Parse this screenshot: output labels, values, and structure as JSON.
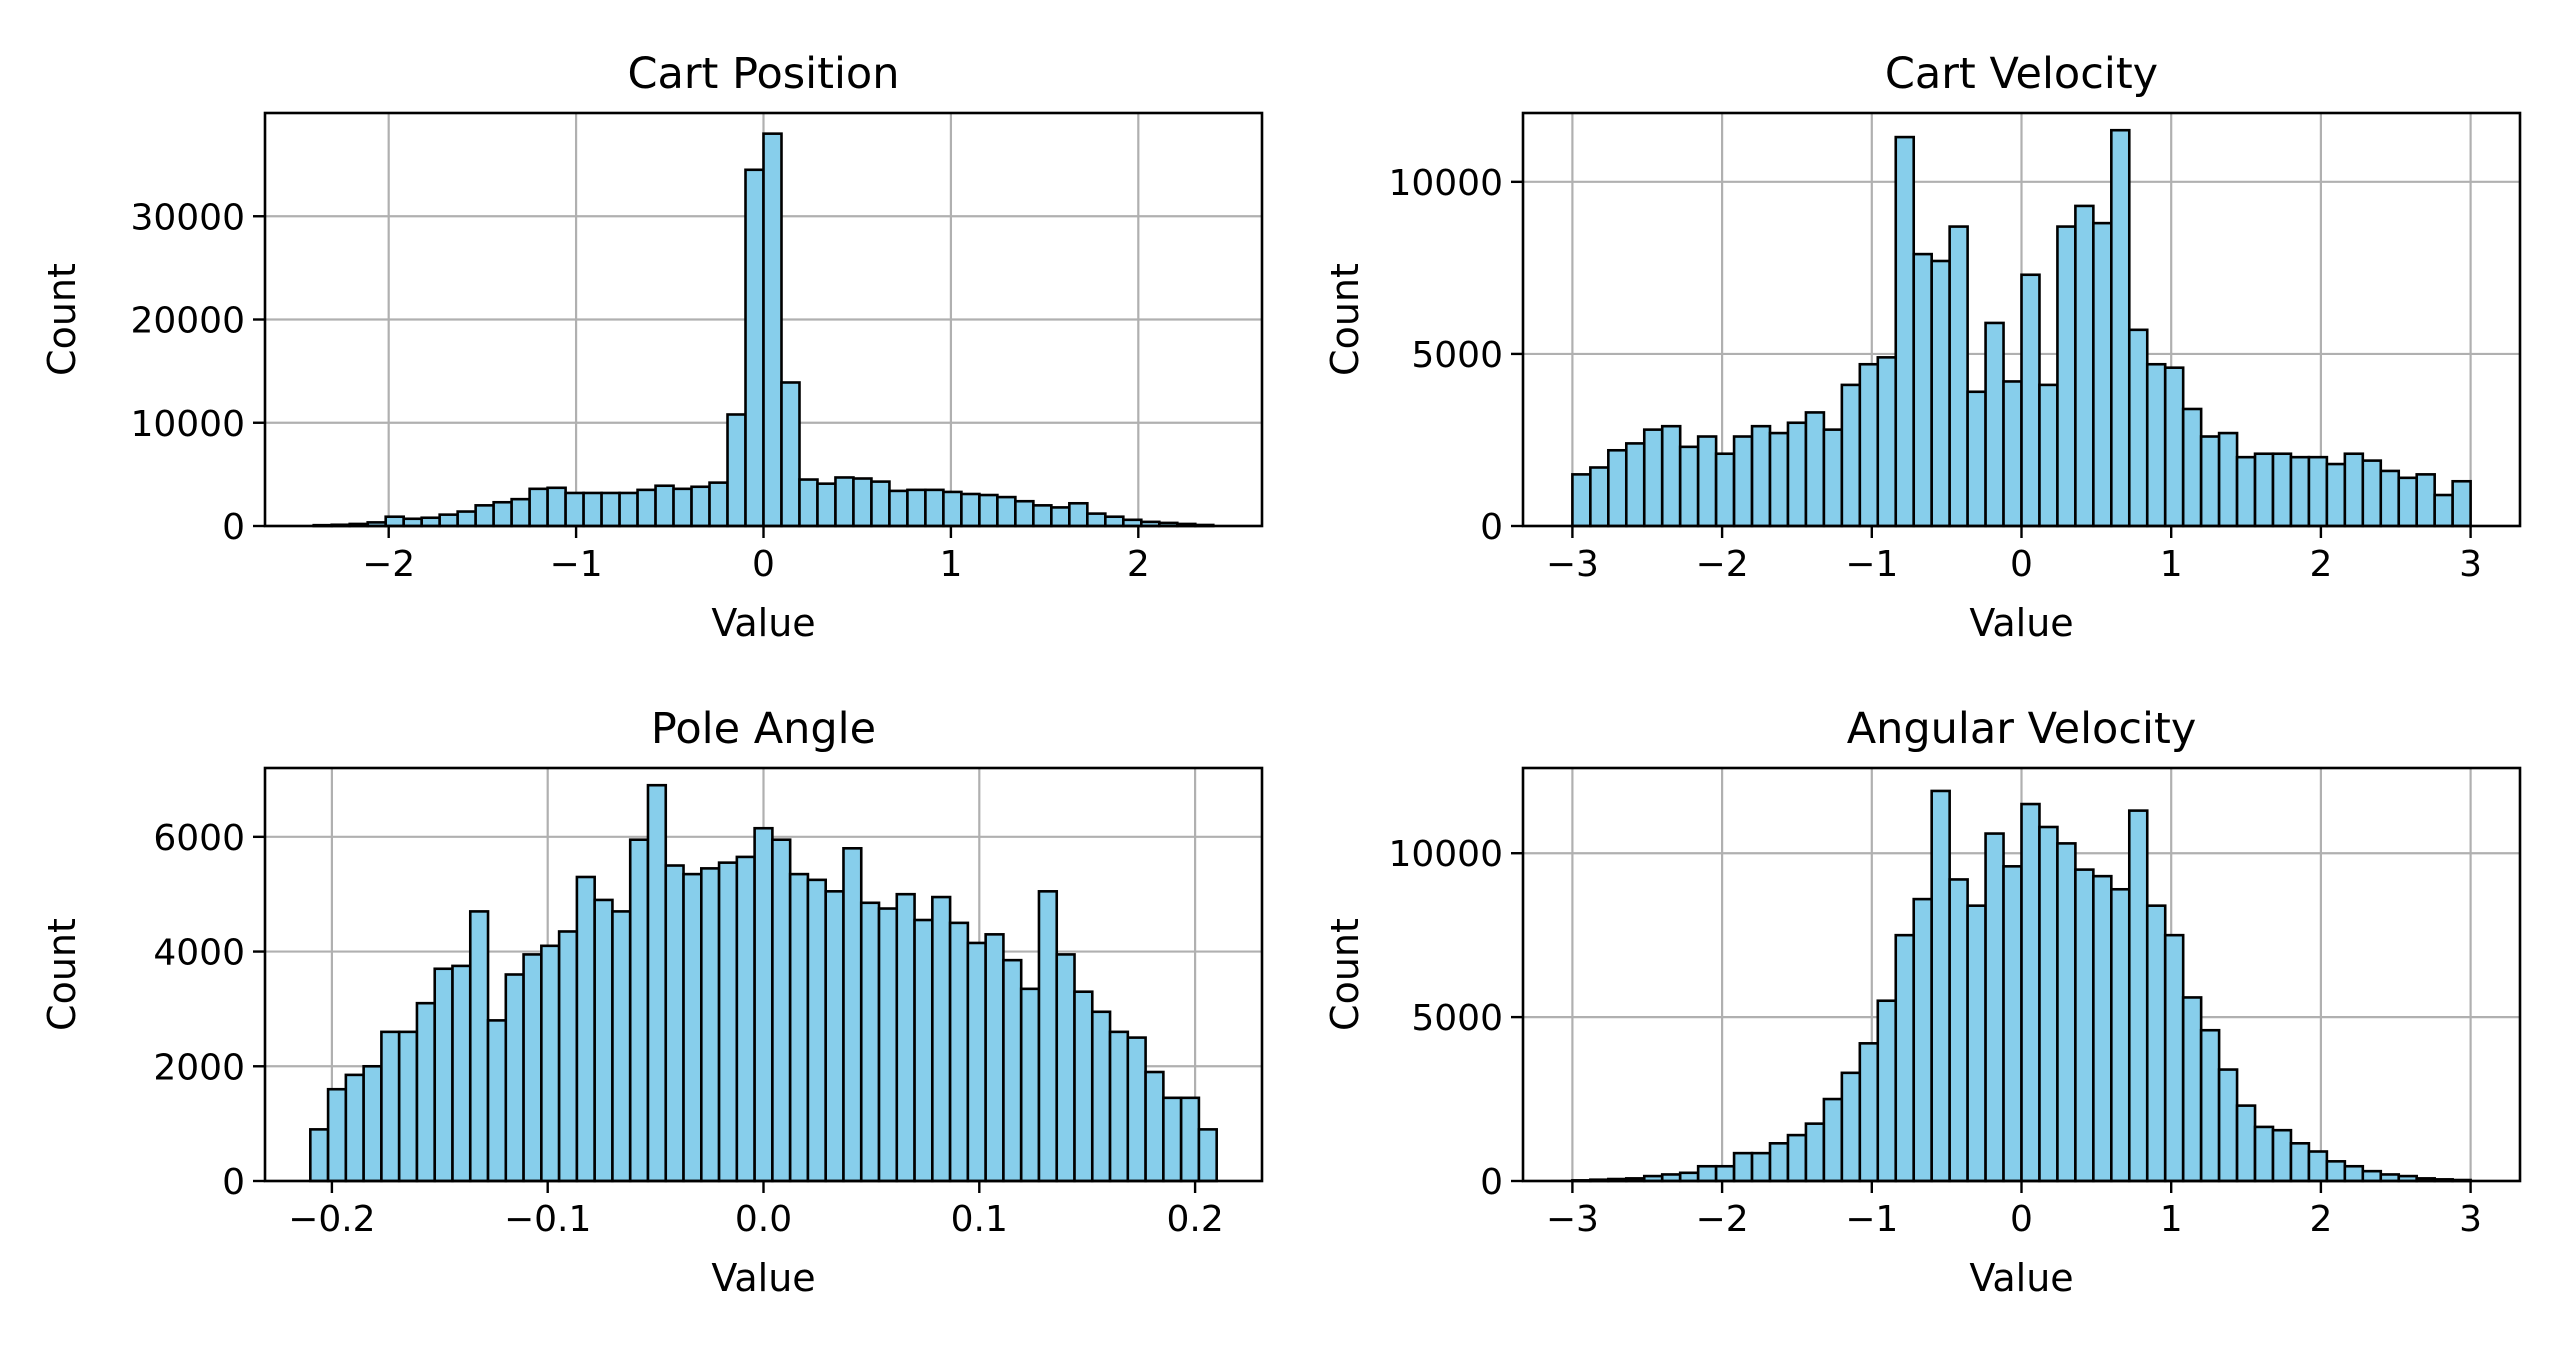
{
  "style": {
    "bar_fill": "#87ceeb",
    "bar_edge": "#000000",
    "grid_color": "#b0b0b0"
  },
  "chart_data": [
    {
      "type": "bar",
      "id": "cart-position",
      "title": "Cart Position",
      "xlabel": "Value",
      "ylabel": "Count",
      "grid": true,
      "xlim": [
        -2.66,
        2.66
      ],
      "ylim": [
        0,
        40000
      ],
      "xticks": [
        -2,
        -1,
        0,
        1,
        2
      ],
      "xtick_labels": [
        "−2",
        "−1",
        "0",
        "1",
        "2"
      ],
      "yticks": [
        0,
        10000,
        20000,
        30000
      ],
      "ytick_labels": [
        "0",
        "10000",
        "20000",
        "30000"
      ],
      "bin_range": [
        -2.4,
        2.4
      ],
      "values": [
        80,
        120,
        200,
        350,
        900,
        700,
        800,
        1100,
        1400,
        2000,
        2300,
        2600,
        3600,
        3700,
        3200,
        3200,
        3200,
        3200,
        3500,
        3900,
        3600,
        3800,
        4200,
        10800,
        34500,
        38000,
        13900,
        4500,
        4100,
        4700,
        4600,
        4300,
        3400,
        3500,
        3500,
        3300,
        3100,
        3000,
        2800,
        2400,
        2000,
        1800,
        2200,
        1200,
        900,
        600,
        400,
        300,
        200,
        100
      ]
    },
    {
      "type": "bar",
      "id": "cart-velocity",
      "title": "Cart Velocity",
      "xlabel": "Value",
      "ylabel": "Count",
      "grid": true,
      "xlim": [
        -3.33,
        3.33
      ],
      "ylim": [
        0,
        12000
      ],
      "xticks": [
        -3,
        -2,
        -1,
        0,
        1,
        2,
        3
      ],
      "xtick_labels": [
        "−3",
        "−2",
        "−1",
        "0",
        "1",
        "2",
        "3"
      ],
      "yticks": [
        0,
        5000,
        10000
      ],
      "ytick_labels": [
        "0",
        "5000",
        "10000"
      ],
      "bin_range": [
        -3,
        3
      ],
      "values": [
        1500,
        1700,
        2200,
        2400,
        2800,
        2900,
        2300,
        2600,
        2100,
        2600,
        2900,
        2700,
        3000,
        3300,
        2800,
        4100,
        4700,
        4900,
        11300,
        7900,
        7700,
        8700,
        3900,
        5900,
        4200,
        7300,
        4100,
        8700,
        9300,
        8800,
        11500,
        5700,
        4700,
        4600,
        3400,
        2600,
        2700,
        2000,
        2100,
        2100,
        2000,
        2000,
        1800,
        2100,
        1900,
        1600,
        1400,
        1500,
        900,
        1300
      ]
    },
    {
      "type": "bar",
      "id": "pole-angle",
      "title": "Pole Angle",
      "xlabel": "Value",
      "ylabel": "Count",
      "grid": true,
      "xlim": [
        -0.231,
        0.231
      ],
      "ylim": [
        0,
        7200
      ],
      "xticks": [
        -0.2,
        -0.1,
        0.0,
        0.1,
        0.2
      ],
      "xtick_labels": [
        "−0.2",
        "−0.1",
        "0.0",
        "0.1",
        "0.2"
      ],
      "yticks": [
        0,
        2000,
        4000,
        6000
      ],
      "ytick_labels": [
        "0",
        "2000",
        "4000",
        "6000"
      ],
      "bin_range": [
        -0.21,
        0.21
      ],
      "values": [
        900,
        1600,
        1850,
        2000,
        2600,
        2600,
        3100,
        3700,
        3750,
        4700,
        2800,
        3600,
        3950,
        4100,
        4350,
        5300,
        4900,
        4700,
        5950,
        6900,
        5500,
        5350,
        5450,
        5550,
        5650,
        6150,
        5950,
        5350,
        5250,
        5050,
        5800,
        4850,
        4750,
        5000,
        4550,
        4950,
        4500,
        4150,
        4300,
        3850,
        3350,
        5050,
        3950,
        3300,
        2950,
        2600,
        2500,
        1900,
        1450,
        1450,
        900
      ]
    },
    {
      "type": "bar",
      "id": "angular-velocity",
      "title": "Angular Velocity",
      "xlabel": "Value",
      "ylabel": "Count",
      "grid": true,
      "xlim": [
        -3.33,
        3.33
      ],
      "ylim": [
        0,
        12600
      ],
      "xticks": [
        -3,
        -2,
        -1,
        0,
        1,
        2,
        3
      ],
      "xtick_labels": [
        "−3",
        "−2",
        "−1",
        "0",
        "1",
        "2",
        "3"
      ],
      "yticks": [
        0,
        5000,
        10000
      ],
      "ytick_labels": [
        "0",
        "5000",
        "10000"
      ],
      "bin_range": [
        -3,
        3
      ],
      "values": [
        20,
        40,
        60,
        80,
        150,
        200,
        250,
        450,
        450,
        850,
        850,
        1150,
        1400,
        1750,
        2500,
        3300,
        4200,
        5500,
        7500,
        8600,
        11900,
        9200,
        8400,
        10600,
        9600,
        11500,
        10800,
        10300,
        9500,
        9300,
        8900,
        11300,
        8400,
        7500,
        5600,
        4600,
        3400,
        2300,
        1650,
        1550,
        1150,
        900,
        600,
        450,
        300,
        200,
        150,
        80,
        50,
        30
      ]
    }
  ]
}
